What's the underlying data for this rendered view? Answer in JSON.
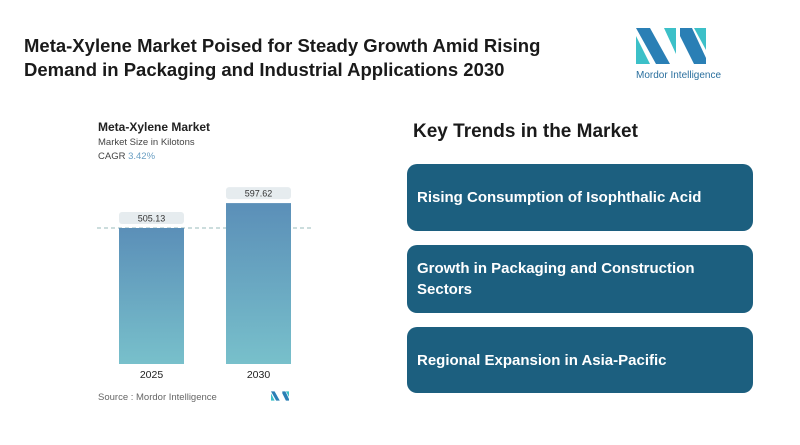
{
  "title": "Meta-Xylene Market Poised for Steady Growth Amid Rising Demand in Packaging and Industrial Applications 2030",
  "logo": {
    "text": "Mordor Intelligence"
  },
  "chart_data": {
    "type": "bar",
    "title": "Meta-Xylene Market",
    "subtitle": "Market Size in Kilotons",
    "cagr_label": "CAGR",
    "cagr_value": "3.42%",
    "categories": [
      "2025",
      "2030"
    ],
    "values": [
      505.13,
      597.62
    ],
    "value_labels": [
      "505.13",
      "597.62"
    ],
    "ylim": [
      0,
      620
    ],
    "xlabel": "",
    "ylabel": ""
  },
  "source": "Source :  Mordor Intelligence",
  "trends": {
    "heading": "Key Trends in the Market",
    "items": [
      "Rising Consumption of Isophthalic Acid",
      "Growth in Packaging and Construction Sectors",
      "Regional Expansion in Asia-Pacific"
    ]
  },
  "colors": {
    "card": "#1c5f7f",
    "bar_top": "#5b8fb8",
    "bar_bottom": "#78c0cb"
  }
}
